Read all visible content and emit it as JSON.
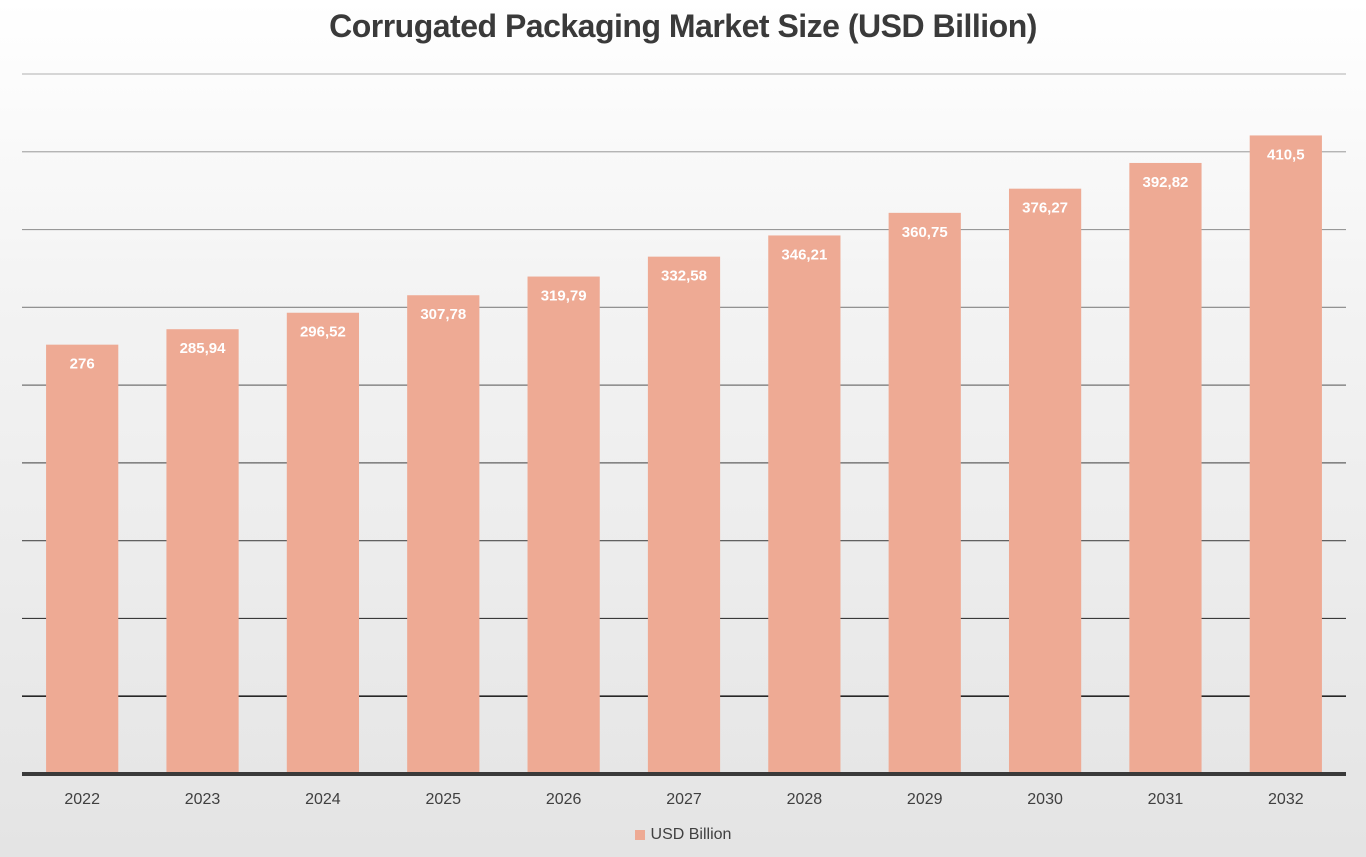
{
  "chart_data": {
    "type": "bar",
    "title": "Corrugated Packaging Market Size (USD Billion)",
    "categories": [
      "2022",
      "2023",
      "2024",
      "2025",
      "2026",
      "2027",
      "2028",
      "2029",
      "2030",
      "2031",
      "2032"
    ],
    "series": [
      {
        "name": "USD Billion",
        "values": [
          276,
          285.94,
          296.52,
          307.78,
          319.79,
          332.58,
          346.21,
          360.75,
          376.27,
          392.82,
          410.5
        ],
        "data_labels": [
          "276",
          "285,94",
          "296,52",
          "307,78",
          "319,79",
          "332,58",
          "346,21",
          "360,75",
          "376,27",
          "392,82",
          "410,5"
        ],
        "color": "#eeaa94"
      }
    ],
    "xlabel": "",
    "ylabel": "",
    "ylim": [
      0,
      450
    ],
    "grid": true,
    "legend_position": "bottom"
  }
}
